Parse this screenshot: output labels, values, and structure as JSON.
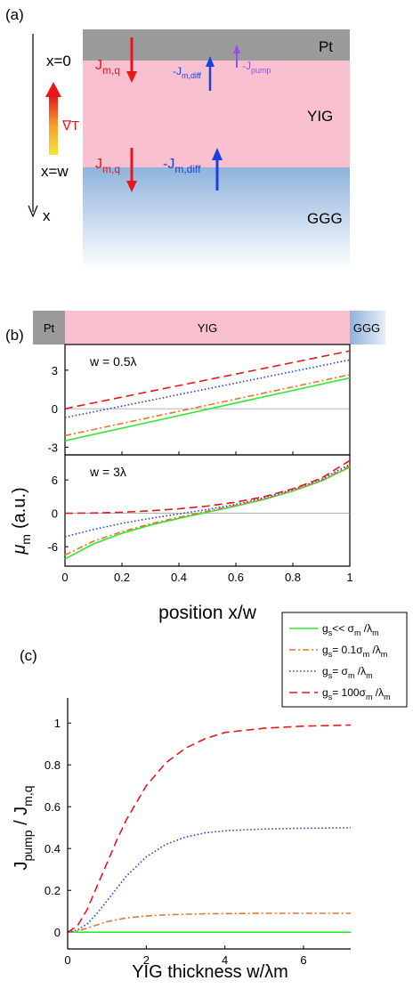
{
  "panel_a": {
    "label": "(a)",
    "pt": "Pt",
    "yig": "YIG",
    "ggg": "GGG",
    "x0": "x=0",
    "xw": "x=w",
    "x": "x",
    "grad": "∇T",
    "jmq_main": "J",
    "jmq_sub": "m,q",
    "jdiff_main": "-J",
    "jdiff_sub": "m,diff",
    "jpump_main": "-J",
    "jpump_sub": "pump",
    "colors": {
      "pt": "#9b9b9b",
      "yig": "#f9c0d0",
      "ggg": "#8fb3dc",
      "red": "#e8161b",
      "blue": "#1b3fe0",
      "purple": "#9a4fe8"
    }
  },
  "panel_b": {
    "label": "(b)",
    "strip": {
      "pt": "Pt",
      "yig": "YIG",
      "ggg": "GGG"
    },
    "ylabel_main": "μ",
    "ylabel_sub": "m",
    "ylabel_unit": "(a.u.)",
    "xlabel": "position x/w",
    "legend": [
      {
        "main": "g",
        "sub": "s",
        "text": "<< σ",
        "sub2": "m",
        "tail": " /λ",
        "sub3": "m",
        "color": "#2ee82e",
        "dash": ""
      },
      {
        "main": "g",
        "sub": "s",
        "text": "= 0.1σ",
        "sub2": "m",
        "tail": " /λ",
        "sub3": "m",
        "color": "#e8752b",
        "dash": "7 3 2 3"
      },
      {
        "main": "g",
        "sub": "s",
        "text": "= σ",
        "sub2": "m",
        "tail": " /λ",
        "sub3": "m",
        "color": "#1b3fe0",
        "dash": "1.5 2.5"
      },
      {
        "main": "g",
        "sub": "s",
        "text": "= 100σ",
        "sub2": "m",
        "tail": " /λ",
        "sub3": "m",
        "color": "#e8161b",
        "dash": "9 5"
      }
    ]
  },
  "panel_c": {
    "label": "(c)",
    "ylabel_main": "J",
    "ylabel_sub1": "pump",
    "ylabel_mid": " / J",
    "ylabel_sub2": "m,q",
    "xlabel": "YIG thickness w/λm"
  },
  "chart_data": [
    {
      "type": "line",
      "annotation": "w = 0.5λ",
      "x": [
        0,
        0.2,
        0.4,
        0.6,
        0.8,
        1
      ],
      "xlim": [
        0,
        1
      ],
      "ylim": [
        -3.6,
        5
      ],
      "yticks": [
        -3,
        0,
        3
      ],
      "series": [
        {
          "values": [
            -2.5,
            -1.52,
            -0.54,
            0.44,
            1.42,
            2.4
          ]
        },
        {
          "values": [
            -2.1,
            -1.15,
            -0.2,
            0.75,
            1.7,
            2.65
          ]
        },
        {
          "values": [
            -0.7,
            0.2,
            1.1,
            2.0,
            2.9,
            3.8
          ]
        },
        {
          "values": [
            0,
            0.9,
            1.8,
            2.7,
            3.6,
            4.5
          ]
        }
      ]
    },
    {
      "type": "line",
      "annotation": "w = 3λ",
      "x": [
        0,
        0.1,
        0.2,
        0.3,
        0.4,
        0.5,
        0.6,
        0.7,
        0.8,
        0.9,
        1
      ],
      "xlim": [
        0,
        1
      ],
      "ylim": [
        -9.5,
        10.5
      ],
      "yticks": [
        -6,
        0,
        6
      ],
      "series": [
        {
          "values": [
            -8.2,
            -5.5,
            -3.6,
            -2.1,
            -0.9,
            0.2,
            1.3,
            2.5,
            4.0,
            5.8,
            8.3
          ]
        },
        {
          "values": [
            -7.5,
            -5.0,
            -3.3,
            -1.9,
            -0.7,
            0.4,
            1.4,
            2.6,
            4.1,
            5.9,
            8.5
          ]
        },
        {
          "values": [
            -4.2,
            -2.9,
            -1.8,
            -0.9,
            -0.1,
            0.7,
            1.6,
            2.8,
            4.3,
            6.1,
            8.8
          ]
        },
        {
          "values": [
            0,
            0.05,
            0.2,
            0.45,
            0.8,
            1.3,
            2.0,
            3.0,
            4.4,
            6.3,
            9.5
          ]
        }
      ]
    },
    {
      "type": "line",
      "x": [
        0,
        0.25,
        0.5,
        0.75,
        1,
        1.25,
        1.5,
        2,
        2.5,
        3,
        3.5,
        4,
        5,
        6,
        7.2
      ],
      "xlim": [
        0,
        7.2
      ],
      "ylim": [
        -0.08,
        1.12
      ],
      "xticks": [
        0,
        2,
        4,
        6
      ],
      "yticks": [
        0,
        0.2,
        0.4,
        0.6,
        0.8,
        1
      ],
      "series": [
        {
          "values": [
            0,
            0,
            0,
            0,
            0,
            0,
            0,
            0,
            0,
            0,
            0,
            0,
            0,
            0,
            0
          ]
        },
        {
          "values": [
            0,
            0.005,
            0.02,
            0.035,
            0.05,
            0.06,
            0.068,
            0.078,
            0.083,
            0.086,
            0.088,
            0.089,
            0.09,
            0.09,
            0.09
          ]
        },
        {
          "values": [
            0,
            0.01,
            0.04,
            0.09,
            0.15,
            0.21,
            0.27,
            0.36,
            0.42,
            0.455,
            0.475,
            0.485,
            0.493,
            0.497,
            0.499
          ]
        },
        {
          "values": [
            0,
            0.03,
            0.11,
            0.22,
            0.33,
            0.44,
            0.54,
            0.7,
            0.81,
            0.88,
            0.925,
            0.955,
            0.975,
            0.985,
            0.99
          ]
        }
      ]
    }
  ]
}
